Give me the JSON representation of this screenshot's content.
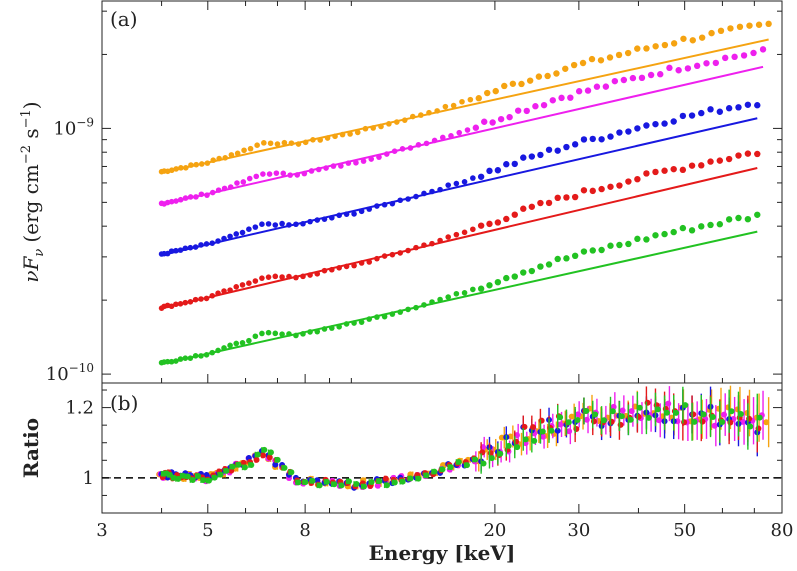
{
  "chart_data": [
    {
      "panel": "(a)",
      "type": "scatter",
      "xscale": "log",
      "yscale": "log",
      "xlim": [
        3,
        80
      ],
      "ylim": [
        9.2e-11,
        3.3e-09
      ],
      "xlabel": "",
      "ylabel_parts": [
        "νF",
        "ν",
        "(erg cm",
        "−2",
        " s",
        "−1",
        ")"
      ],
      "ytick_labels": [
        {
          "value": 1e-09,
          "base": "10",
          "exp": "−9"
        },
        {
          "value": 1e-10,
          "base": "10",
          "exp": "−10"
        }
      ],
      "series": [
        {
          "name": "orange",
          "color": "#f5a311",
          "emin": 4.0,
          "emax": 75,
          "data_start": 6.6e-10,
          "data_end": 2.65e-09,
          "model_start": 6.6e-10,
          "model_end": 2.3e-09
        },
        {
          "name": "magenta",
          "color": "#ee20ee",
          "emin": 4.0,
          "emax": 73,
          "data_start": 4.9e-10,
          "data_end": 1.96e-09,
          "model_start": 4.9e-10,
          "model_end": 1.78e-09
        },
        {
          "name": "blue",
          "color": "#1818e0",
          "emin": 4.0,
          "emax": 71,
          "data_start": 3.05e-10,
          "data_end": 1.22e-09,
          "model_start": 3.05e-10,
          "model_end": 1.1e-09
        },
        {
          "name": "red",
          "color": "#e41a1a",
          "emin": 4.0,
          "emax": 71,
          "data_start": 1.85e-10,
          "data_end": 7.6e-10,
          "model_start": 1.85e-10,
          "model_end": 6.9e-10
        },
        {
          "name": "green",
          "color": "#22c222",
          "emin": 4.0,
          "emax": 71,
          "data_start": 1.1e-10,
          "data_end": 4.4e-10,
          "model_start": 1.1e-10,
          "model_end": 3.8e-10
        }
      ]
    },
    {
      "panel": "(b)",
      "type": "scatter",
      "xscale": "log",
      "xlim": [
        3,
        80
      ],
      "ylim": [
        0.9,
        1.27
      ],
      "xlabel": "Energy [keV]",
      "ylabel": "Ratio",
      "xtick_labels": [
        "3",
        "5",
        "8",
        "20",
        "30",
        "50",
        "80"
      ],
      "xtick_values": [
        3,
        5,
        8,
        20,
        30,
        50,
        80
      ],
      "ytick_labels": [
        "1",
        "1.2"
      ],
      "ytick_values": [
        1,
        1.2
      ],
      "reference_line": 1,
      "profile_energy": [
        4.0,
        4.5,
        5.0,
        5.5,
        6.0,
        6.3,
        6.6,
        7.0,
        7.5,
        8.0,
        9.0,
        10.0,
        11.0,
        12.0,
        13.0,
        14.0,
        15.0,
        17.0,
        19.0,
        21.0,
        24.0,
        28.0,
        32.0,
        38.0,
        45.0,
        55.0,
        65.0,
        75.0
      ],
      "profile_ratio": [
        1.01,
        1.005,
        1.0,
        1.02,
        1.04,
        1.06,
        1.075,
        1.04,
        1.0,
        0.99,
        0.985,
        0.98,
        0.985,
        0.99,
        1.0,
        1.01,
        1.02,
        1.04,
        1.07,
        1.1,
        1.13,
        1.16,
        1.17,
        1.18,
        1.19,
        1.18,
        1.17,
        1.15
      ],
      "series_names": [
        "orange",
        "magenta",
        "blue",
        "red",
        "green"
      ]
    }
  ]
}
